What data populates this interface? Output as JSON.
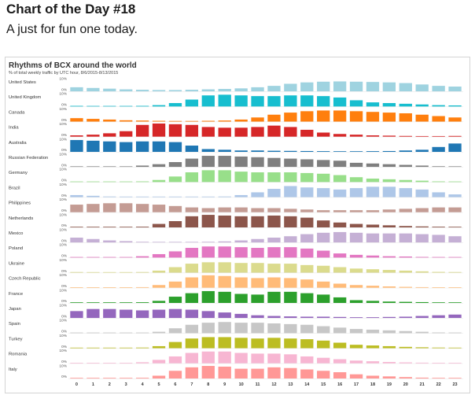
{
  "post": {
    "title": "Chart of the Day #18",
    "subtitle": "A just for fun one today."
  },
  "chart_data": {
    "type": "bar",
    "title": "Rhythms of BCX around the world",
    "subtitle": "% of total weekly traffic by UTC hour, 8/6/2015-8/13/2015",
    "x": [
      "0",
      "1",
      "2",
      "3",
      "4",
      "5",
      "6",
      "7",
      "8",
      "9",
      "10",
      "11",
      "12",
      "13",
      "14",
      "15",
      "16",
      "17",
      "18",
      "19",
      "20",
      "21",
      "22",
      "23"
    ],
    "ylim": [
      0,
      10
    ],
    "y_tick_labels": [
      "10%",
      "0%"
    ],
    "grid": false,
    "series": [
      {
        "name": "United States",
        "color": "#9fd3e0",
        "values": [
          3.0,
          2.5,
          2.0,
          1.5,
          1.2,
          1.0,
          1.0,
          1.2,
          1.5,
          1.8,
          2.2,
          3.0,
          4.0,
          5.5,
          6.5,
          7.0,
          7.2,
          7.0,
          6.8,
          6.5,
          6.0,
          5.0,
          4.0,
          3.5
        ]
      },
      {
        "name": "United Kingdom",
        "color": "#17becf",
        "values": [
          0.5,
          0.3,
          0.3,
          0.3,
          0.5,
          1.0,
          2.5,
          5.0,
          8.0,
          8.5,
          8.0,
          7.5,
          7.5,
          8.0,
          8.0,
          7.5,
          6.5,
          4.5,
          3.0,
          2.5,
          2.0,
          1.5,
          1.0,
          0.8
        ]
      },
      {
        "name": "Canada",
        "color": "#ff7f0e",
        "values": [
          2.5,
          2.0,
          1.5,
          1.0,
          0.8,
          0.6,
          0.5,
          0.5,
          0.6,
          0.8,
          1.5,
          3.0,
          5.0,
          6.5,
          7.5,
          8.0,
          8.0,
          7.5,
          7.0,
          6.5,
          6.0,
          5.0,
          4.0,
          3.0
        ]
      },
      {
        "name": "India",
        "color": "#d62728",
        "values": [
          1.0,
          1.5,
          2.5,
          4.0,
          8.5,
          9.5,
          9.0,
          8.5,
          7.0,
          6.5,
          6.5,
          7.0,
          8.0,
          7.0,
          5.0,
          3.0,
          2.0,
          1.5,
          1.0,
          0.8,
          0.6,
          0.5,
          0.5,
          0.6
        ]
      },
      {
        "name": "Australia",
        "color": "#1f77b4",
        "values": [
          8.5,
          8.0,
          7.5,
          7.0,
          7.5,
          7.5,
          7.0,
          4.5,
          2.0,
          1.5,
          1.0,
          1.0,
          0.8,
          0.7,
          0.6,
          0.5,
          0.4,
          0.4,
          0.5,
          0.6,
          1.0,
          1.5,
          3.5,
          6.0
        ]
      },
      {
        "name": "Russian Federation",
        "color": "#7f7f7f",
        "values": [
          0.2,
          0.2,
          0.2,
          0.3,
          1.0,
          2.0,
          3.5,
          6.0,
          8.0,
          8.0,
          7.5,
          7.0,
          6.5,
          6.0,
          5.5,
          5.0,
          4.5,
          3.0,
          2.5,
          2.0,
          1.5,
          1.0,
          0.5,
          0.3
        ]
      },
      {
        "name": "Germany",
        "color": "#98df8a",
        "values": [
          0.2,
          0.2,
          0.2,
          0.2,
          0.5,
          1.5,
          4.0,
          7.0,
          8.5,
          8.5,
          7.5,
          7.0,
          7.0,
          7.0,
          6.5,
          6.0,
          5.0,
          3.5,
          2.5,
          2.0,
          1.5,
          1.0,
          0.5,
          0.3
        ]
      },
      {
        "name": "Brazil",
        "color": "#aec7e8",
        "values": [
          1.5,
          1.0,
          0.5,
          0.3,
          0.2,
          0.2,
          0.2,
          0.2,
          0.3,
          0.5,
          1.5,
          3.5,
          6.0,
          8.0,
          7.0,
          6.5,
          5.5,
          6.5,
          7.5,
          7.5,
          6.5,
          5.5,
          3.5,
          2.0
        ]
      },
      {
        "name": "Philippines",
        "color": "#c49c94",
        "values": [
          5.5,
          6.0,
          6.5,
          6.5,
          6.0,
          5.5,
          4.5,
          3.5,
          3.0,
          3.5,
          3.5,
          3.0,
          3.0,
          2.5,
          2.0,
          1.5,
          1.5,
          1.5,
          1.5,
          2.0,
          2.5,
          3.0,
          3.5,
          3.5
        ]
      },
      {
        "name": "Netherlands",
        "color": "#8c564b",
        "values": [
          0.3,
          0.3,
          0.3,
          0.3,
          0.5,
          2.5,
          4.5,
          8.0,
          9.0,
          8.5,
          8.0,
          8.0,
          8.5,
          8.0,
          7.0,
          5.0,
          3.5,
          2.5,
          2.0,
          1.5,
          1.0,
          0.7,
          0.5,
          0.4
        ]
      },
      {
        "name": "Mexico",
        "color": "#c5b0d5",
        "values": [
          3.5,
          2.5,
          1.5,
          1.0,
          0.5,
          0.3,
          0.3,
          0.4,
          0.5,
          0.8,
          1.5,
          2.5,
          3.5,
          4.5,
          6.0,
          7.0,
          7.5,
          7.0,
          6.5,
          6.5,
          6.5,
          6.0,
          5.5,
          4.5
        ]
      },
      {
        "name": "Poland",
        "color": "#e377c2",
        "values": [
          0.2,
          0.2,
          0.2,
          0.3,
          1.0,
          2.5,
          4.5,
          7.0,
          8.0,
          8.0,
          7.5,
          7.0,
          7.5,
          7.5,
          6.5,
          5.0,
          3.0,
          2.0,
          1.5,
          1.0,
          0.8,
          0.5,
          0.3,
          0.2
        ]
      },
      {
        "name": "Ukraine",
        "color": "#dbdb8d",
        "values": [
          0.5,
          0.3,
          0.3,
          0.3,
          0.5,
          1.5,
          4.0,
          6.5,
          7.5,
          7.5,
          7.0,
          7.0,
          6.5,
          6.5,
          5.5,
          5.0,
          4.0,
          3.0,
          2.5,
          2.0,
          1.5,
          1.0,
          0.6,
          0.5
        ]
      },
      {
        "name": "Czech Republic",
        "color": "#ffbb78",
        "values": [
          0.2,
          0.2,
          0.2,
          0.3,
          0.5,
          2.0,
          4.5,
          7.5,
          9.0,
          8.5,
          7.5,
          7.0,
          7.5,
          7.0,
          6.0,
          4.5,
          3.0,
          2.0,
          1.5,
          1.0,
          0.7,
          0.5,
          0.3,
          0.2
        ]
      },
      {
        "name": "France",
        "color": "#2ca02c",
        "values": [
          0.3,
          0.3,
          0.3,
          0.3,
          0.5,
          1.5,
          4.5,
          7.0,
          8.5,
          8.0,
          6.5,
          6.0,
          8.0,
          8.0,
          7.0,
          6.0,
          4.0,
          2.0,
          1.5,
          1.0,
          0.8,
          0.6,
          0.4,
          0.3
        ]
      },
      {
        "name": "Japan",
        "color": "#9467bd",
        "values": [
          5.0,
          6.5,
          6.5,
          6.0,
          5.5,
          6.0,
          6.5,
          6.0,
          5.0,
          4.0,
          3.0,
          2.0,
          1.5,
          1.2,
          1.0,
          1.0,
          0.8,
          0.6,
          0.6,
          0.8,
          1.0,
          1.5,
          2.0,
          2.5
        ]
      },
      {
        "name": "Spain",
        "color": "#c7c7c7",
        "values": [
          0.2,
          0.2,
          0.2,
          0.2,
          0.3,
          1.0,
          3.5,
          6.0,
          7.5,
          8.0,
          7.5,
          7.5,
          7.0,
          6.5,
          6.0,
          5.0,
          4.0,
          3.0,
          2.5,
          2.0,
          1.5,
          1.0,
          0.5,
          0.3
        ]
      },
      {
        "name": "Turkey",
        "color": "#bcbd22",
        "values": [
          0.3,
          0.2,
          0.2,
          0.2,
          0.5,
          1.5,
          4.5,
          7.0,
          8.0,
          8.0,
          7.5,
          7.0,
          7.5,
          7.0,
          6.5,
          5.5,
          4.0,
          2.5,
          2.0,
          1.5,
          1.0,
          0.7,
          0.5,
          0.4
        ]
      },
      {
        "name": "Romania",
        "color": "#f7b6d2",
        "values": [
          0.2,
          0.2,
          0.2,
          0.2,
          0.8,
          2.5,
          5.0,
          7.5,
          8.5,
          8.5,
          7.5,
          7.0,
          7.0,
          6.5,
          5.0,
          4.0,
          3.0,
          2.0,
          1.5,
          1.0,
          0.7,
          0.5,
          0.3,
          0.2
        ]
      },
      {
        "name": "Italy",
        "color": "#ff9896",
        "values": [
          0.2,
          0.2,
          0.2,
          0.2,
          0.5,
          2.0,
          5.5,
          8.0,
          9.0,
          8.5,
          7.0,
          7.0,
          8.0,
          7.5,
          6.5,
          5.5,
          4.5,
          3.0,
          2.0,
          1.5,
          1.0,
          0.6,
          0.4,
          0.3
        ]
      }
    ]
  }
}
